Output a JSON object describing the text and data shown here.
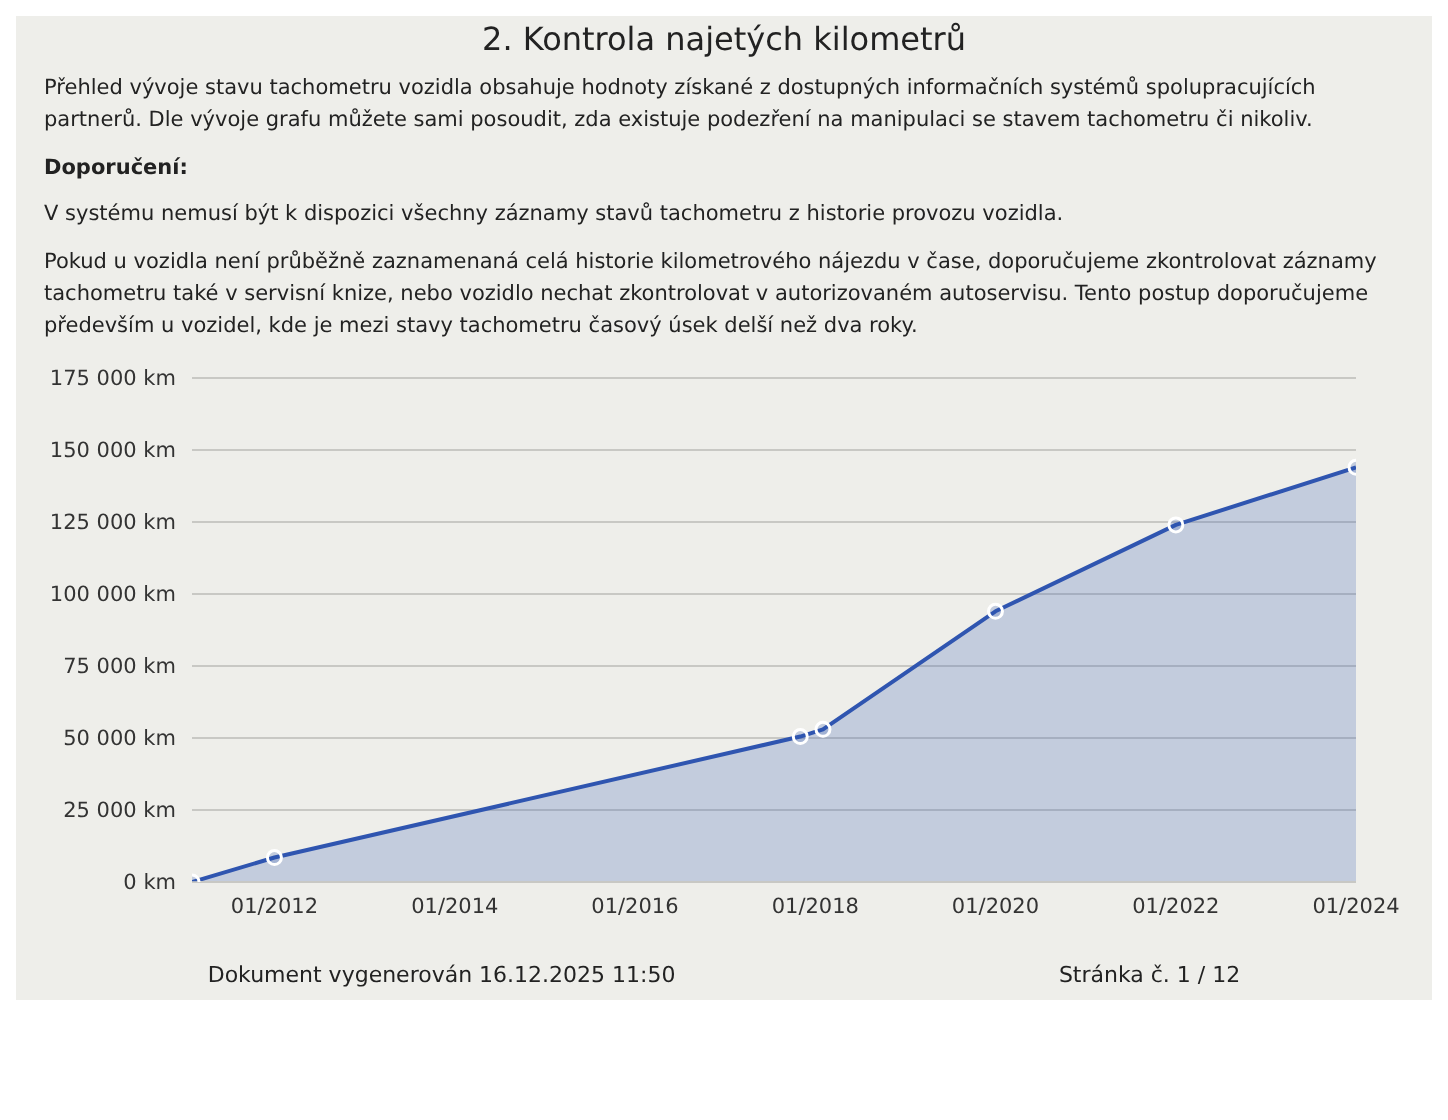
{
  "chart_data": {
    "type": "area",
    "title": "2. Kontrola najetých kilometrů",
    "annotations": [
      "Přehled vývoje stavu tachometru vozidla obsahuje hodnoty získané z dostupných informačních systémů spolupracujících partnerů. Dle vývoje grafu můžete sami posoudit, zda existuje podezření na manipulaci se stavem tachometru či nikoliv.",
      "Doporučení:",
      "V systému nemusí být k dispozici všechny záznamy stavů tachometru z historie provozu vozidla.",
      "Pokud u vozidla není průběžně zaznamenaná celá historie kilometrového nájezdu v čase, doporučujeme zkontrolovat záznamy tachometru také v servisní knize, nebo vozidlo nechat zkontrolovat v autorizovaném autoservisu. Tento postup doporučujeme především u vozidel, kde je mezi stavy tachometru časový úsek delší než dva roky.",
      "Dokument vygenerován 16.12.2025 11:50",
      "Stránka č. 1 / 12"
    ],
    "x": [
      "2011-02",
      "2012-01",
      "2017-11",
      "2018-02",
      "2020-01",
      "2022-01",
      "2024-01"
    ],
    "series": [
      {
        "color": "#2f55b0",
        "values": [
          0,
          8500,
          50500,
          53000,
          94000,
          124000,
          144000
        ]
      }
    ],
    "xlim": [
      "2011-02",
      "2024-01"
    ],
    "xticks": [
      {
        "value": "2012-01",
        "label": "01/2012"
      },
      {
        "value": "2014-01",
        "label": "01/2014"
      },
      {
        "value": "2016-01",
        "label": "01/2016"
      },
      {
        "value": "2018-01",
        "label": "01/2018"
      },
      {
        "value": "2020-01",
        "label": "01/2020"
      },
      {
        "value": "2022-01",
        "label": "01/2022"
      },
      {
        "value": "2024-01",
        "label": "01/2024"
      }
    ],
    "ylim": [
      0,
      175000
    ],
    "yticks": [
      {
        "value": 0,
        "label": "0 km"
      },
      {
        "value": 25000,
        "label": "25 000 km"
      },
      {
        "value": 50000,
        "label": "50 000 km"
      },
      {
        "value": 75000,
        "label": "75 000 km"
      },
      {
        "value": 100000,
        "label": "100 000 km"
      },
      {
        "value": 125000,
        "label": "125 000 km"
      },
      {
        "value": 150000,
        "label": "150 000 km"
      },
      {
        "value": 175000,
        "label": "175 000 km"
      }
    ],
    "grid": "y",
    "marker": "circle"
  }
}
